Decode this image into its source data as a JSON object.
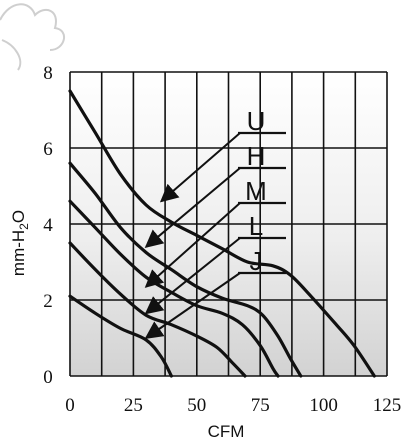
{
  "chart_data": {
    "type": "line",
    "xlabel": "CFM",
    "ylabel_main": "mm-H",
    "ylabel_sub": "2",
    "ylabel_end": "O",
    "xlim": [
      0,
      125
    ],
    "ylim": [
      0,
      8
    ],
    "x_ticks": [
      "0",
      "25",
      "50",
      "75",
      "100",
      "125"
    ],
    "y_ticks": [
      "0",
      "2",
      "4",
      "6",
      "8"
    ],
    "grid": true,
    "series": [
      {
        "name": "U",
        "points": [
          [
            0,
            7.5
          ],
          [
            10,
            6.4
          ],
          [
            20,
            5.3
          ],
          [
            30,
            4.5
          ],
          [
            40,
            4.05
          ],
          [
            50,
            3.7
          ],
          [
            60,
            3.35
          ],
          [
            70,
            3.0
          ],
          [
            80,
            2.9
          ],
          [
            87,
            2.65
          ],
          [
            95,
            2.1
          ],
          [
            105,
            1.35
          ],
          [
            112,
            0.8
          ],
          [
            120,
            0.0
          ]
        ],
        "arrow_tip": [
          36,
          4.6
        ]
      },
      {
        "name": "H",
        "points": [
          [
            0,
            5.6
          ],
          [
            10,
            4.8
          ],
          [
            20,
            3.9
          ],
          [
            30,
            3.25
          ],
          [
            40,
            2.8
          ],
          [
            50,
            2.35
          ],
          [
            60,
            2.05
          ],
          [
            70,
            1.85
          ],
          [
            76,
            1.6
          ],
          [
            82,
            1.05
          ],
          [
            87,
            0.45
          ],
          [
            91,
            0.0
          ]
        ],
        "arrow_tip": [
          30,
          3.4
        ]
      },
      {
        "name": "M",
        "points": [
          [
            0,
            4.6
          ],
          [
            10,
            3.9
          ],
          [
            20,
            3.2
          ],
          [
            30,
            2.6
          ],
          [
            40,
            2.2
          ],
          [
            50,
            1.85
          ],
          [
            60,
            1.65
          ],
          [
            68,
            1.35
          ],
          [
            75,
            0.8
          ],
          [
            80,
            0.2
          ],
          [
            82,
            0.0
          ]
        ],
        "arrow_tip": [
          30,
          2.35
        ]
      },
      {
        "name": "L",
        "points": [
          [
            0,
            3.5
          ],
          [
            10,
            2.8
          ],
          [
            20,
            2.15
          ],
          [
            30,
            1.6
          ],
          [
            40,
            1.35
          ],
          [
            50,
            1.05
          ],
          [
            58,
            0.75
          ],
          [
            64,
            0.35
          ],
          [
            69,
            0.0
          ]
        ],
        "arrow_tip": [
          30,
          1.65
        ]
      },
      {
        "name": "J",
        "points": [
          [
            0,
            2.1
          ],
          [
            10,
            1.65
          ],
          [
            20,
            1.25
          ],
          [
            30,
            0.95
          ],
          [
            36,
            0.5
          ],
          [
            40,
            0.0
          ]
        ],
        "arrow_tip": [
          30,
          1.0
        ]
      }
    ]
  }
}
